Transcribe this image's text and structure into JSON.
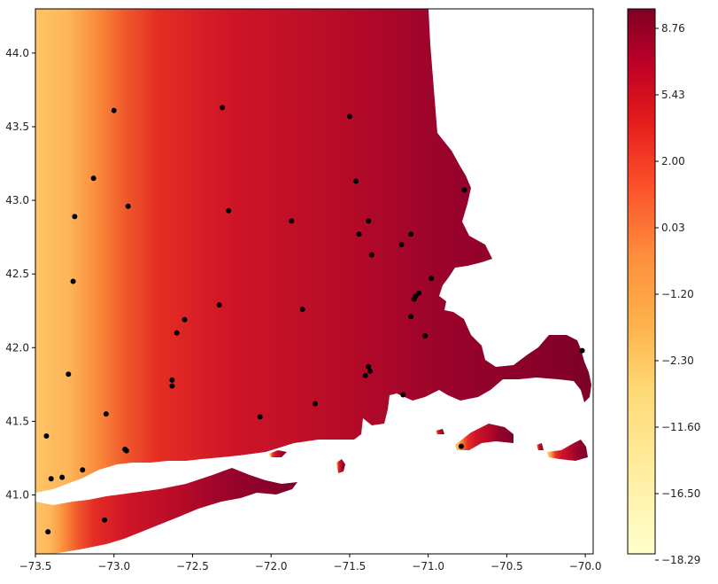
{
  "chart_data": {
    "type": "heatmap",
    "title": "",
    "xlabel": "",
    "ylabel": "",
    "xlim": [
      -73.5,
      -69.95
    ],
    "ylim": [
      40.6,
      44.3
    ],
    "x_ticks": [
      -73.5,
      -73.0,
      -72.5,
      -72.0,
      -71.5,
      -71.0,
      -70.5,
      -70.0
    ],
    "x_tick_labels": [
      "−73.5",
      "−73.0",
      "−72.5",
      "−72.0",
      "−71.5",
      "−71.0",
      "−70.5",
      "−70.0"
    ],
    "y_ticks": [
      41.0,
      41.5,
      42.0,
      42.5,
      43.0,
      43.5,
      44.0
    ],
    "y_tick_labels": [
      "41.0",
      "41.5",
      "42.0",
      "42.5",
      "43.0",
      "43.5",
      "44.0"
    ],
    "colormap": "YlOrRd",
    "colorbar_ticks": [
      "8.76",
      "5.43",
      "2.00",
      "0.03",
      "−1.20",
      "−2.30",
      "−11.60",
      "−16.50",
      "−18.29"
    ],
    "grid": false,
    "station_points": [
      {
        "x": -73.42,
        "y": 40.75
      },
      {
        "x": -73.06,
        "y": 40.83
      },
      {
        "x": -73.43,
        "y": 41.4
      },
      {
        "x": -73.4,
        "y": 41.11
      },
      {
        "x": -73.33,
        "y": 41.12
      },
      {
        "x": -73.2,
        "y": 41.17
      },
      {
        "x": -72.93,
        "y": 41.31
      },
      {
        "x": -72.92,
        "y": 41.3
      },
      {
        "x": -73.05,
        "y": 41.55
      },
      {
        "x": -73.29,
        "y": 41.82
      },
      {
        "x": -72.63,
        "y": 41.78
      },
      {
        "x": -72.63,
        "y": 41.74
      },
      {
        "x": -72.6,
        "y": 42.1
      },
      {
        "x": -72.55,
        "y": 42.19
      },
      {
        "x": -72.33,
        "y": 42.29
      },
      {
        "x": -73.26,
        "y": 42.45
      },
      {
        "x": -73.25,
        "y": 42.89
      },
      {
        "x": -73.13,
        "y": 43.15
      },
      {
        "x": -73.0,
        "y": 43.61
      },
      {
        "x": -72.91,
        "y": 42.96
      },
      {
        "x": -72.27,
        "y": 42.93
      },
      {
        "x": -72.31,
        "y": 43.63
      },
      {
        "x": -71.87,
        "y": 42.86
      },
      {
        "x": -71.8,
        "y": 42.26
      },
      {
        "x": -72.07,
        "y": 41.53
      },
      {
        "x": -71.72,
        "y": 41.62
      },
      {
        "x": -71.5,
        "y": 43.57
      },
      {
        "x": -71.46,
        "y": 43.13
      },
      {
        "x": -71.44,
        "y": 42.77
      },
      {
        "x": -71.38,
        "y": 42.86
      },
      {
        "x": -71.36,
        "y": 42.63
      },
      {
        "x": -71.17,
        "y": 42.7
      },
      {
        "x": -71.11,
        "y": 42.77
      },
      {
        "x": -70.98,
        "y": 42.47
      },
      {
        "x": -71.06,
        "y": 42.37
      },
      {
        "x": -71.08,
        "y": 42.35
      },
      {
        "x": -71.09,
        "y": 42.33
      },
      {
        "x": -71.11,
        "y": 42.21
      },
      {
        "x": -71.02,
        "y": 42.08
      },
      {
        "x": -71.38,
        "y": 41.87
      },
      {
        "x": -71.37,
        "y": 41.84
      },
      {
        "x": -71.4,
        "y": 41.81
      },
      {
        "x": -71.16,
        "y": 41.68
      },
      {
        "x": -70.77,
        "y": 43.07
      },
      {
        "x": -70.79,
        "y": 41.33
      },
      {
        "x": -70.02,
        "y": 41.98
      }
    ]
  }
}
